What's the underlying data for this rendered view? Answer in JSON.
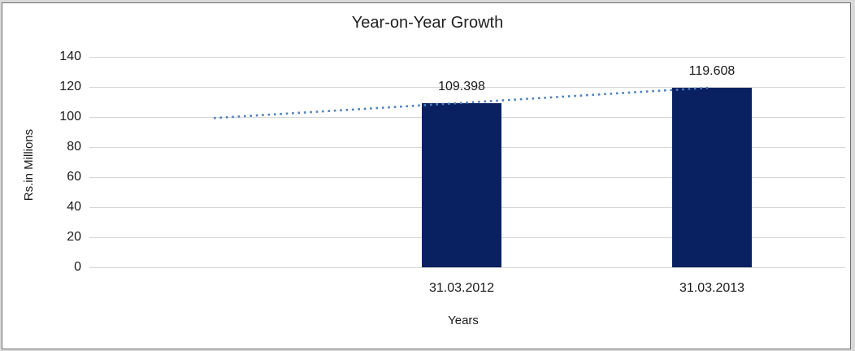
{
  "window": {
    "outer_background": "#d9d9d9",
    "frame_border_color": "#6e6e6e",
    "surface_color": "#ffffff",
    "gridline_color": "#d6d6d6",
    "text_color": "#1a1a1a"
  },
  "chart_data": {
    "type": "bar",
    "title": "Year-on-Year Growth",
    "xlabel": "Years",
    "ylabel": "Rs.in Millions",
    "categories": [
      "31.03.2012",
      "31.03.2013"
    ],
    "values": [
      109.398,
      119.608
    ],
    "data_labels": [
      "109.398",
      "119.608"
    ],
    "yticks": [
      0,
      20,
      40,
      60,
      80,
      100,
      120,
      140
    ],
    "ylim": [
      0,
      140
    ],
    "grid": "horizontal-only",
    "legend": "none",
    "bar_color": "#0a2161",
    "trendline": {
      "type": "linear",
      "style": "dotted",
      "color": "#4f81bd",
      "backward_periods": 1,
      "forward_periods": 0
    }
  }
}
